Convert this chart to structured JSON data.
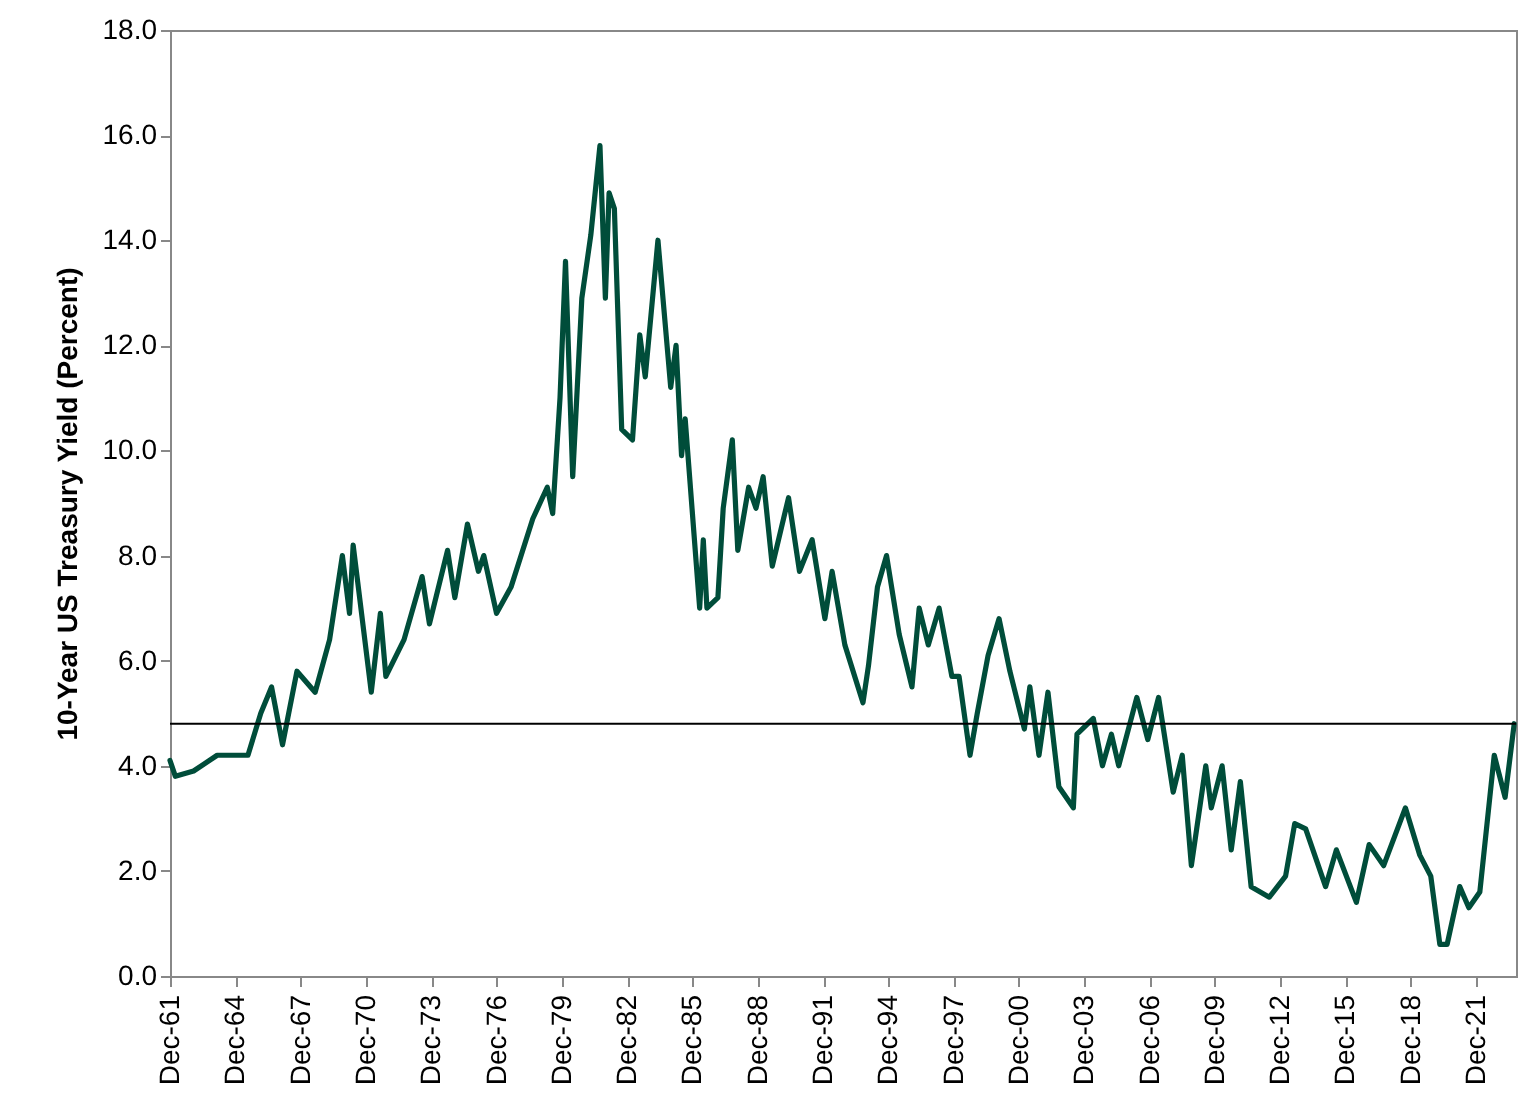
{
  "chart_data": {
    "type": "line",
    "ylabel": "10-Year US Treasury Yield (Percent)",
    "x": [
      "1961-12",
      "1962-03",
      "1963-01",
      "1964-02",
      "1965-07",
      "1966-02",
      "1966-08",
      "1967-02",
      "1967-10",
      "1968-08",
      "1969-04",
      "1969-11",
      "1970-03",
      "1970-05",
      "1971-03",
      "1971-08",
      "1971-11",
      "1972-09",
      "1973-07",
      "1973-11",
      "1974-09",
      "1975-01",
      "1975-08",
      "1976-02",
      "1976-05",
      "1976-12",
      "1977-08",
      "1978-08",
      "1979-04",
      "1979-07",
      "1979-11",
      "1980-02",
      "1980-06",
      "1980-11",
      "1981-04",
      "1981-09",
      "1981-12",
      "1982-02",
      "1982-05",
      "1982-09",
      "1983-03",
      "1983-07",
      "1983-10",
      "1984-05",
      "1984-12",
      "1985-03",
      "1985-06",
      "1985-08",
      "1986-04",
      "1986-06",
      "1986-08",
      "1987-02",
      "1987-05",
      "1987-10",
      "1988-01",
      "1988-07",
      "1988-11",
      "1989-03",
      "1989-08",
      "1990-05",
      "1990-11",
      "1991-06",
      "1992-01",
      "1992-05",
      "1992-12",
      "1993-10",
      "1994-01",
      "1994-06",
      "1994-11",
      "1995-06",
      "1996-01",
      "1996-05",
      "1996-10",
      "1997-04",
      "1997-11",
      "1998-03",
      "1998-09",
      "1999-01",
      "1999-07",
      "2000-01",
      "2000-07",
      "2001-03",
      "2001-06",
      "2001-11",
      "2002-04",
      "2002-10",
      "2003-06",
      "2003-08",
      "2004-05",
      "2004-10",
      "2005-03",
      "2005-07",
      "2006-05",
      "2006-11",
      "2007-05",
      "2008-01",
      "2008-06",
      "2008-11",
      "2009-07",
      "2009-10",
      "2010-04",
      "2010-09",
      "2011-02",
      "2011-08",
      "2012-06",
      "2013-03",
      "2013-08",
      "2014-02",
      "2015-01",
      "2015-07",
      "2016-06",
      "2017-01",
      "2017-09",
      "2018-09",
      "2019-05",
      "2019-11",
      "2020-04",
      "2020-08",
      "2021-03",
      "2021-08",
      "2022-02",
      "2022-10",
      "2023-04",
      "2023-09"
    ],
    "series": [
      {
        "color": "#004d3a",
        "values": [
          4.1,
          3.8,
          3.9,
          4.2,
          4.2,
          5.0,
          5.5,
          4.4,
          5.8,
          5.4,
          6.4,
          8.0,
          6.9,
          8.2,
          5.4,
          6.9,
          5.7,
          6.4,
          7.6,
          6.7,
          8.1,
          7.2,
          8.6,
          7.7,
          8.0,
          6.9,
          7.4,
          8.7,
          9.3,
          8.8,
          11.0,
          13.6,
          9.5,
          12.9,
          14.1,
          15.8,
          12.9,
          14.9,
          14.6,
          10.4,
          10.2,
          12.2,
          11.4,
          14.0,
          11.2,
          12.0,
          9.9,
          10.6,
          7.0,
          8.3,
          7.0,
          7.2,
          8.9,
          10.2,
          8.1,
          9.3,
          8.9,
          9.5,
          7.8,
          9.1,
          7.7,
          8.3,
          6.8,
          7.7,
          6.3,
          5.2,
          5.9,
          7.4,
          8.0,
          6.5,
          5.5,
          7.0,
          6.3,
          7.0,
          5.7,
          5.7,
          4.2,
          5.0,
          6.1,
          6.8,
          5.8,
          4.7,
          5.5,
          4.2,
          5.4,
          3.6,
          3.2,
          4.6,
          4.9,
          4.0,
          4.6,
          4.0,
          5.3,
          4.5,
          5.3,
          3.5,
          4.2,
          2.1,
          4.0,
          3.2,
          4.0,
          2.4,
          3.7,
          1.7,
          1.5,
          1.9,
          2.9,
          2.8,
          1.7,
          2.4,
          1.4,
          2.5,
          2.1,
          3.2,
          2.3,
          1.9,
          0.6,
          0.6,
          1.7,
          1.3,
          1.6,
          4.2,
          3.4,
          4.8
        ]
      }
    ],
    "xlim": [
      "1961-12",
      "2023-10"
    ],
    "xticks": [
      {
        "value": "1961-12",
        "label": "Dec-61"
      },
      {
        "value": "1964-12",
        "label": "Dec-64"
      },
      {
        "value": "1967-12",
        "label": "Dec-67"
      },
      {
        "value": "1970-12",
        "label": "Dec-70"
      },
      {
        "value": "1973-12",
        "label": "Dec-73"
      },
      {
        "value": "1976-12",
        "label": "Dec-76"
      },
      {
        "value": "1979-12",
        "label": "Dec-79"
      },
      {
        "value": "1982-12",
        "label": "Dec-82"
      },
      {
        "value": "1985-12",
        "label": "Dec-85"
      },
      {
        "value": "1988-12",
        "label": "Dec-88"
      },
      {
        "value": "1991-12",
        "label": "Dec-91"
      },
      {
        "value": "1994-12",
        "label": "Dec-94"
      },
      {
        "value": "1997-12",
        "label": "Dec-97"
      },
      {
        "value": "2000-12",
        "label": "Dec-00"
      },
      {
        "value": "2003-12",
        "label": "Dec-03"
      },
      {
        "value": "2006-12",
        "label": "Dec-06"
      },
      {
        "value": "2009-12",
        "label": "Dec-09"
      },
      {
        "value": "2012-12",
        "label": "Dec-12"
      },
      {
        "value": "2015-12",
        "label": "Dec-15"
      },
      {
        "value": "2018-12",
        "label": "Dec-18"
      },
      {
        "value": "2021-12",
        "label": "Dec-21"
      }
    ],
    "ylim": [
      0,
      18
    ],
    "yticks": [
      {
        "value": 0,
        "label": "0.0"
      },
      {
        "value": 2,
        "label": "2.0"
      },
      {
        "value": 4,
        "label": "4.0"
      },
      {
        "value": 6,
        "label": "6.0"
      },
      {
        "value": 8,
        "label": "8.0"
      },
      {
        "value": 10,
        "label": "10.0"
      },
      {
        "value": 12,
        "label": "12.0"
      },
      {
        "value": 14,
        "label": "14.0"
      },
      {
        "value": 16,
        "label": "16.0"
      },
      {
        "value": 18,
        "label": "18.0"
      }
    ],
    "ref_lines": [
      {
        "axis": "y",
        "value": 4.8,
        "color": "#000000"
      }
    ],
    "grid": false,
    "marker": "none",
    "line_style": "solid"
  }
}
